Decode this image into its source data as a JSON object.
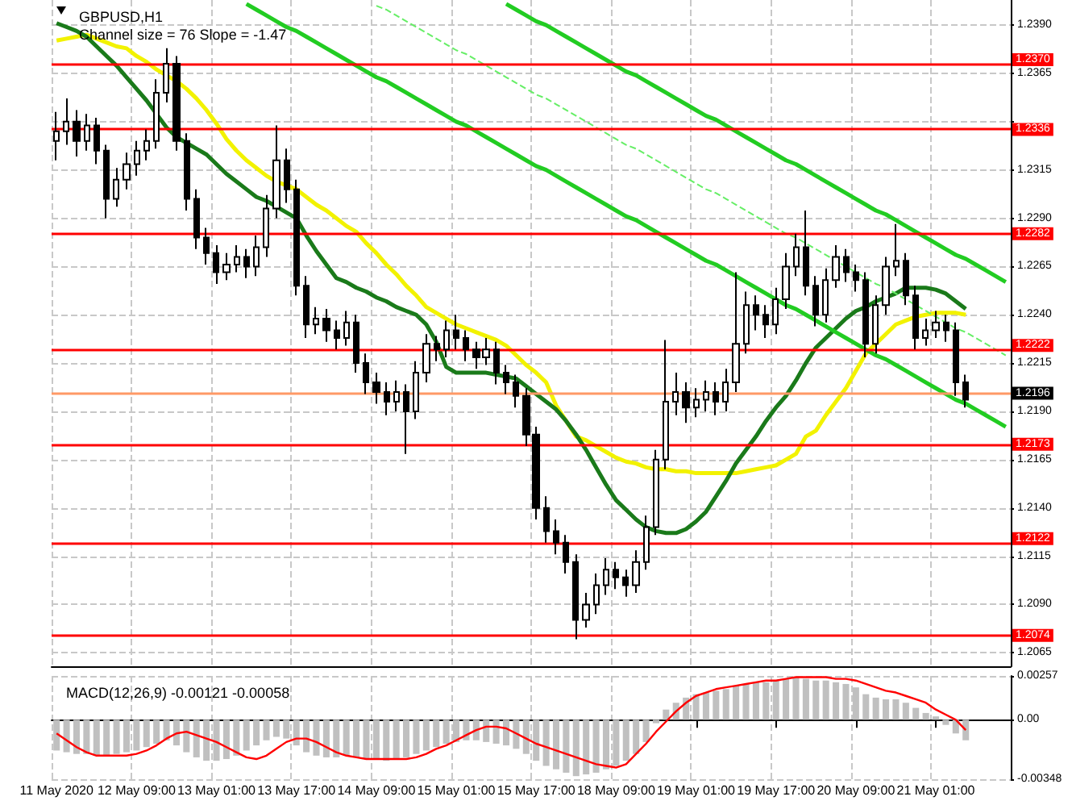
{
  "chart_data": [
    {
      "type": "candlestick",
      "title": "GBPUSD,H1",
      "subtitle": "Channel size = 76 Slope = -1.47",
      "color": "#000000",
      "categories": [
        null,
        null,
        null,
        null,
        null,
        null,
        null,
        null,
        null,
        null,
        null,
        null,
        null,
        null,
        null,
        null,
        null,
        null,
        null,
        null,
        null,
        null,
        null,
        null,
        null,
        null,
        null,
        null,
        null,
        null,
        null,
        null,
        null,
        null,
        null,
        null,
        null,
        null,
        null,
        null,
        null,
        null,
        null,
        null,
        null,
        null,
        null,
        null,
        null,
        null,
        null,
        null,
        null,
        null,
        null,
        null,
        null,
        null,
        null,
        null,
        null,
        null,
        null,
        null,
        null,
        null,
        null,
        null,
        null,
        null,
        null,
        null,
        null,
        null,
        null,
        null,
        null,
        null,
        null,
        null,
        null,
        null,
        null,
        null,
        null,
        null,
        null,
        null,
        null,
        null,
        null,
        null,
        null,
        null,
        null,
        null
      ],
      "ohlc": [
        [
          1.233,
          1.2345,
          1.232,
          1.2335
        ],
        [
          1.2335,
          1.2352,
          1.2328,
          1.234
        ],
        [
          1.234,
          1.2346,
          1.2322,
          1.233
        ],
        [
          1.233,
          1.2344,
          1.2325,
          1.2338
        ],
        [
          1.2338,
          1.2342,
          1.2318,
          1.2325
        ],
        [
          1.2325,
          1.2328,
          1.229,
          1.23
        ],
        [
          1.23,
          1.2316,
          1.2296,
          1.231
        ],
        [
          1.231,
          1.2324,
          1.2305,
          1.2318
        ],
        [
          1.2318,
          1.233,
          1.2312,
          1.2325
        ],
        [
          1.2325,
          1.2336,
          1.232,
          1.233
        ],
        [
          1.233,
          1.2362,
          1.2326,
          1.2355
        ],
        [
          1.2355,
          1.2378,
          1.235,
          1.237
        ],
        [
          1.237,
          1.2374,
          1.2325,
          1.233
        ],
        [
          1.233,
          1.2334,
          1.2294,
          1.23
        ],
        [
          1.23,
          1.2305,
          1.2274,
          1.228
        ],
        [
          1.228,
          1.2285,
          1.2266,
          1.2272
        ],
        [
          1.2272,
          1.2276,
          1.2256,
          1.2262
        ],
        [
          1.2262,
          1.2272,
          1.2258,
          1.2266
        ],
        [
          1.2266,
          1.2276,
          1.2262,
          1.227
        ],
        [
          1.227,
          1.2274,
          1.2259,
          1.2265
        ],
        [
          1.2265,
          1.2281,
          1.226,
          1.2275
        ],
        [
          1.2275,
          1.2302,
          1.227,
          1.2295
        ],
        [
          1.2295,
          1.2338,
          1.229,
          1.232
        ],
        [
          1.232,
          1.2326,
          1.2298,
          1.2305
        ],
        [
          1.2305,
          1.231,
          1.225,
          1.2255
        ],
        [
          1.2255,
          1.226,
          1.2228,
          1.2235
        ],
        [
          1.2235,
          1.2244,
          1.223,
          1.2238
        ],
        [
          1.2238,
          1.2243,
          1.2226,
          1.2232
        ],
        [
          1.2232,
          1.2237,
          1.2222,
          1.2228
        ],
        [
          1.2228,
          1.2242,
          1.2224,
          1.2236
        ],
        [
          1.2236,
          1.224,
          1.221,
          1.2215
        ],
        [
          1.2215,
          1.222,
          1.2199,
          1.2205
        ],
        [
          1.2205,
          1.221,
          1.2194,
          1.22
        ],
        [
          1.22,
          1.2205,
          1.2188,
          1.2195
        ],
        [
          1.2195,
          1.2206,
          1.219,
          1.22
        ],
        [
          1.22,
          1.2204,
          1.2168,
          1.219
        ],
        [
          1.219,
          1.2216,
          1.2186,
          1.221
        ],
        [
          1.221,
          1.223,
          1.2205,
          1.2225
        ],
        [
          1.2225,
          1.2229,
          1.2216,
          1.2222
        ],
        [
          1.2222,
          1.2237,
          1.2218,
          1.2232
        ],
        [
          1.2232,
          1.224,
          1.2222,
          1.2228
        ],
        [
          1.2228,
          1.2232,
          1.2216,
          1.2222
        ],
        [
          1.2222,
          1.2226,
          1.2212,
          1.2218
        ],
        [
          1.2218,
          1.2228,
          1.2214,
          1.2222
        ],
        [
          1.2222,
          1.2226,
          1.2204,
          1.221
        ],
        [
          1.221,
          1.2214,
          1.2199,
          1.2205
        ],
        [
          1.2205,
          1.2209,
          1.2192,
          1.2198
        ],
        [
          1.2198,
          1.2202,
          1.2172,
          1.2178
        ],
        [
          1.2178,
          1.2182,
          1.2134,
          1.214
        ],
        [
          1.214,
          1.2146,
          1.2122,
          1.2128
        ],
        [
          1.2128,
          1.2134,
          1.2116,
          1.2122
        ],
        [
          1.2122,
          1.2126,
          1.2106,
          1.2112
        ],
        [
          1.2112,
          1.2116,
          1.2072,
          1.2082
        ],
        [
          1.2082,
          1.2096,
          1.2078,
          1.209
        ],
        [
          1.209,
          1.2106,
          1.2085,
          1.21
        ],
        [
          1.21,
          1.2114,
          1.2095,
          1.2108
        ],
        [
          1.2108,
          1.2112,
          1.2098,
          1.2104
        ],
        [
          1.2104,
          1.2108,
          1.2094,
          1.21
        ],
        [
          1.21,
          1.2118,
          1.2096,
          1.2112
        ],
        [
          1.2112,
          1.2136,
          1.2108,
          1.213
        ],
        [
          1.213,
          1.217,
          1.2126,
          1.2165
        ],
        [
          1.2165,
          1.2227,
          1.216,
          1.2195
        ],
        [
          1.2195,
          1.221,
          1.2188,
          1.22
        ],
        [
          1.22,
          1.2205,
          1.2184,
          1.2192
        ],
        [
          1.2192,
          1.2202,
          1.2187,
          1.2196
        ],
        [
          1.2196,
          1.2206,
          1.219,
          1.22
        ],
        [
          1.22,
          1.2205,
          1.2188,
          1.2195
        ],
        [
          1.2195,
          1.2212,
          1.219,
          1.2205
        ],
        [
          1.2205,
          1.2262,
          1.22,
          1.2225
        ],
        [
          1.2225,
          1.2252,
          1.222,
          1.2245
        ],
        [
          1.2245,
          1.225,
          1.2232,
          1.224
        ],
        [
          1.224,
          1.2245,
          1.2228,
          1.2235
        ],
        [
          1.2235,
          1.2254,
          1.223,
          1.2248
        ],
        [
          1.2248,
          1.2272,
          1.2243,
          1.2265
        ],
        [
          1.2265,
          1.2282,
          1.226,
          1.2275
        ],
        [
          1.2275,
          1.2294,
          1.225,
          1.2255
        ],
        [
          1.2255,
          1.226,
          1.2234,
          1.224
        ],
        [
          1.224,
          1.2264,
          1.2236,
          1.2258
        ],
        [
          1.2258,
          1.2276,
          1.2254,
          1.227
        ],
        [
          1.227,
          1.2274,
          1.2257,
          1.2262
        ],
        [
          1.2262,
          1.2266,
          1.2252,
          1.2258
        ],
        [
          1.2258,
          1.2262,
          1.2218,
          1.2225
        ],
        [
          1.2225,
          1.225,
          1.222,
          1.2245
        ],
        [
          1.2245,
          1.227,
          1.224,
          1.2265
        ],
        [
          1.2265,
          1.2287,
          1.226,
          1.2268
        ],
        [
          1.2268,
          1.2272,
          1.2245,
          1.225
        ],
        [
          1.225,
          1.2255,
          1.2222,
          1.2228
        ],
        [
          1.2228,
          1.2238,
          1.2224,
          1.2232
        ],
        [
          1.2232,
          1.2242,
          1.2228,
          1.2236
        ],
        [
          1.2236,
          1.224,
          1.2226,
          1.2232
        ],
        [
          1.2232,
          1.2236,
          1.2198,
          1.2205
        ],
        [
          1.2205,
          1.2209,
          1.2192,
          1.2196
        ],
        null,
        null,
        null,
        null
      ],
      "series": [
        {
          "type": "line",
          "color": "#f2f200",
          "values": [
            1.2382,
            1.2383,
            1.2384,
            1.2385,
            1.2383,
            1.2381,
            1.2379,
            1.2378,
            1.2374,
            1.2371,
            1.2367,
            1.2364,
            1.2361,
            1.2357,
            1.2352,
            1.2346,
            1.2339,
            1.2331,
            1.2325,
            1.232,
            1.2316,
            1.2312,
            1.2309,
            1.2307,
            1.2305,
            1.2301,
            1.2297,
            1.2294,
            1.229,
            1.2286,
            1.2283,
            1.2277,
            1.2272,
            1.2266,
            1.2261,
            1.2255,
            1.225,
            1.2244,
            1.2241,
            1.2238,
            1.2235,
            1.2233,
            1.2231,
            1.2229,
            1.2227,
            1.2224,
            1.2219,
            1.2214,
            1.221,
            1.2205,
            1.2193,
            1.2185,
            1.2177,
            1.2175,
            1.2172,
            1.2169,
            1.2166,
            1.2164,
            1.2163,
            1.2161,
            1.216,
            1.216,
            1.2159,
            1.2159,
            1.2158,
            1.2158,
            1.2158,
            1.2158,
            1.2158,
            1.2159,
            1.216,
            1.2161,
            1.2162,
            1.2165,
            1.2168,
            1.2177,
            1.218,
            1.2188,
            1.2195,
            1.2202,
            1.2211,
            1.222,
            1.2225,
            1.223,
            1.2235,
            1.2237,
            1.2239,
            1.224,
            1.2241,
            1.2241,
            1.2241,
            1.224,
            null,
            null,
            null,
            null
          ]
        },
        {
          "type": "line",
          "color": "#1a7a1a",
          "values": [
            1.2391,
            1.2389,
            1.2387,
            1.2384,
            1.2379,
            1.2374,
            1.2369,
            1.2363,
            1.2357,
            1.2351,
            1.2344,
            1.2337,
            1.2332,
            1.2329,
            1.2326,
            1.2323,
            1.2318,
            1.2313,
            1.2309,
            1.2305,
            1.2301,
            1.2299,
            1.2296,
            1.2293,
            1.229,
            1.2281,
            1.2273,
            1.2266,
            1.2259,
            1.2257,
            1.2254,
            1.2252,
            1.2249,
            1.2247,
            1.2244,
            1.2242,
            1.224,
            1.2235,
            1.2226,
            1.2213,
            1.221,
            1.221,
            1.221,
            1.221,
            1.2209,
            1.2208,
            1.2207,
            1.2203,
            1.2199,
            1.2195,
            1.2191,
            1.2185,
            1.2178,
            1.217,
            1.2161,
            1.2152,
            1.2144,
            1.2139,
            1.2134,
            1.213,
            1.2128,
            1.2127,
            1.2127,
            1.2129,
            1.2133,
            1.2138,
            1.2146,
            1.2154,
            1.2163,
            1.217,
            1.2177,
            1.2185,
            1.2192,
            1.2198,
            1.2206,
            1.2215,
            1.2223,
            1.2228,
            1.2233,
            1.2238,
            1.2242,
            1.2244,
            1.2247,
            1.2249,
            1.2251,
            1.2254,
            1.2254,
            1.2254,
            1.2253,
            1.2251,
            1.2247,
            1.2243,
            null,
            null,
            null,
            null
          ]
        },
        {
          "type": "line",
          "color": "#22cc22",
          "values": [
            null,
            null,
            null,
            null,
            null,
            null,
            null,
            null,
            null,
            null,
            null,
            null,
            null,
            null,
            null,
            null,
            null,
            null,
            null,
            null,
            null,
            null,
            null,
            null,
            null,
            null,
            null,
            null,
            null,
            null,
            null,
            null,
            null,
            null,
            null,
            null,
            null,
            null,
            null,
            null,
            null,
            null,
            null,
            null,
            null,
            1.2401,
            1.2398,
            1.2395,
            1.2392,
            1.239,
            1.2387,
            1.2384,
            1.2381,
            1.2378,
            1.2375,
            1.2372,
            1.2369,
            1.2366,
            1.2364,
            1.2361,
            1.2358,
            1.2355,
            1.2352,
            1.2349,
            1.2346,
            1.2343,
            1.2341,
            1.2338,
            1.2335,
            1.2332,
            1.2329,
            1.2326,
            1.2323,
            1.232,
            1.2318,
            1.2315,
            1.2312,
            1.2309,
            1.2306,
            1.2303,
            1.23,
            1.2297,
            1.2294,
            1.2292,
            1.2289,
            1.2286,
            1.2283,
            1.228,
            1.2277,
            1.2274,
            1.2271,
            1.2269,
            1.2266,
            1.2263,
            1.226,
            1.2257
          ]
        },
        {
          "type": "line",
          "color": "#66ee66",
          "line_style": "dashed",
          "values": [
            null,
            null,
            null,
            null,
            null,
            null,
            null,
            null,
            null,
            null,
            null,
            null,
            null,
            null,
            null,
            null,
            null,
            null,
            null,
            null,
            null,
            null,
            null,
            null,
            null,
            null,
            null,
            null,
            null,
            null,
            null,
            null,
            1.24,
            1.2398,
            1.2395,
            1.2392,
            1.2389,
            1.2386,
            1.2383,
            1.238,
            1.2377,
            1.2375,
            1.2372,
            1.2369,
            1.2366,
            1.2363,
            1.236,
            1.2357,
            1.2354,
            1.2352,
            1.2349,
            1.2346,
            1.2343,
            1.234,
            1.2337,
            1.2334,
            1.2331,
            1.2328,
            1.2326,
            1.2323,
            1.232,
            1.2317,
            1.2314,
            1.2311,
            1.2308,
            1.2305,
            1.2303,
            1.23,
            1.2297,
            1.2294,
            1.2291,
            1.2288,
            1.2285,
            1.2282,
            1.228,
            1.2277,
            1.2274,
            1.2271,
            1.2268,
            1.2265,
            1.2262,
            1.2259,
            1.2256,
            1.2254,
            1.2251,
            1.2248,
            1.2245,
            1.2242,
            1.2239,
            1.2236,
            1.2233,
            1.2231,
            1.2228,
            1.2225,
            1.2222,
            1.2219
          ]
        },
        {
          "type": "line",
          "color": "#22cc22",
          "values": [
            null,
            null,
            null,
            null,
            null,
            null,
            null,
            null,
            null,
            null,
            null,
            null,
            null,
            null,
            null,
            null,
            null,
            null,
            null,
            1.2401,
            1.2398,
            1.2395,
            1.2392,
            1.2389,
            1.2387,
            1.2384,
            1.2381,
            1.2378,
            1.2375,
            1.2372,
            1.2369,
            1.2366,
            1.2363,
            1.2361,
            1.2358,
            1.2355,
            1.2352,
            1.2349,
            1.2346,
            1.2343,
            1.234,
            1.2338,
            1.2335,
            1.2332,
            1.2329,
            1.2326,
            1.2323,
            1.232,
            1.2317,
            1.2315,
            1.2312,
            1.2309,
            1.2306,
            1.2303,
            1.23,
            1.2297,
            1.2294,
            1.2291,
            1.2289,
            1.2286,
            1.2283,
            1.228,
            1.2277,
            1.2274,
            1.2271,
            1.2268,
            1.2266,
            1.2263,
            1.226,
            1.2257,
            1.2254,
            1.2251,
            1.2248,
            1.2245,
            1.2243,
            1.224,
            1.2237,
            1.2234,
            1.2231,
            1.2228,
            1.2225,
            1.2222,
            1.2219,
            1.2217,
            1.2214,
            1.2211,
            1.2208,
            1.2205,
            1.2202,
            1.2199,
            1.2196,
            1.2194,
            1.2191,
            1.2188,
            1.2185,
            1.2182
          ]
        }
      ],
      "ref_lines": [
        {
          "axis": "y",
          "value": 1.237,
          "label": "1.2370",
          "color": "#ff0000"
        },
        {
          "axis": "y",
          "value": 1.2336,
          "label": "1.2336",
          "color": "#ff0000"
        },
        {
          "axis": "y",
          "value": 1.2282,
          "label": "1.2282",
          "color": "#ff0000"
        },
        {
          "axis": "y",
          "value": 1.2222,
          "label": "1.2222",
          "color": "#ff0000"
        },
        {
          "axis": "y",
          "value": 1.2199,
          "label": null,
          "color": "#ff9966"
        },
        {
          "axis": "y",
          "value": 1.2173,
          "label": "1.2173",
          "color": "#ff0000"
        },
        {
          "axis": "y",
          "value": 1.2122,
          "label": "1.2122",
          "color": "#ff0000"
        },
        {
          "axis": "y",
          "value": 1.2074,
          "label": "1.2074",
          "color": "#ff0000"
        }
      ],
      "annotations": [
        "1.2196"
      ],
      "ylim": [
        1.2058,
        1.2403
      ],
      "yticks": [
        {
          "value": 1.2065,
          "label": "1.2065"
        },
        {
          "value": 1.209,
          "label": "1.2090"
        },
        {
          "value": 1.2115,
          "label": "1.2115"
        },
        {
          "value": 1.214,
          "label": "1.2140"
        },
        {
          "value": 1.2165,
          "label": "1.2165"
        },
        {
          "value": 1.219,
          "label": "1.2190"
        },
        {
          "value": 1.2215,
          "label": "1.2215"
        },
        {
          "value": 1.224,
          "label": "1.2240"
        },
        {
          "value": 1.2265,
          "label": "1.2265"
        },
        {
          "value": 1.229,
          "label": "1.2290"
        },
        {
          "value": 1.2315,
          "label": "1.2315"
        },
        {
          "value": 1.234,
          "label": null
        },
        {
          "value": 1.2365,
          "label": "1.2365"
        },
        {
          "value": 1.239,
          "label": "1.2390"
        }
      ],
      "grid": true,
      "marker": "none",
      "tick_labels": "y"
    },
    {
      "type": "bar",
      "title": "MACD(12,26,9) -0.00121 -0.00058",
      "categories": [
        "11 May 2020",
        null,
        null,
        null,
        null,
        null,
        null,
        null,
        "12 May 09:00",
        null,
        null,
        null,
        null,
        null,
        null,
        null,
        "13 May 01:00",
        null,
        null,
        null,
        null,
        null,
        null,
        null,
        "13 May 17:00",
        null,
        null,
        null,
        null,
        null,
        null,
        null,
        "14 May 09:00",
        null,
        null,
        null,
        null,
        null,
        null,
        null,
        "15 May 01:00",
        null,
        null,
        null,
        null,
        null,
        null,
        null,
        "15 May 17:00",
        null,
        null,
        null,
        null,
        null,
        null,
        null,
        "18 May 09:00",
        null,
        null,
        null,
        null,
        null,
        null,
        null,
        "19 May 01:00",
        null,
        null,
        null,
        null,
        null,
        null,
        null,
        "19 May 17:00",
        null,
        null,
        null,
        null,
        null,
        null,
        null,
        "20 May 09:00",
        null,
        null,
        null,
        null,
        null,
        null,
        null,
        "21 May 01:00",
        null,
        null,
        null,
        null,
        null,
        null,
        null
      ],
      "series": [
        {
          "type": "bar",
          "color": "#c0c0c0",
          "values": [
            -0.0018,
            -0.0019,
            -0.002,
            -0.002,
            -0.0021,
            -0.0021,
            -0.002,
            -0.0019,
            -0.0018,
            -0.0016,
            -0.0014,
            -0.0012,
            -0.0015,
            -0.0019,
            -0.0022,
            -0.0024,
            -0.0024,
            -0.0023,
            -0.0021,
            -0.0018,
            -0.0015,
            -0.0012,
            -0.001,
            -0.0011,
            -0.0015,
            -0.0019,
            -0.0021,
            -0.0022,
            -0.0022,
            -0.0021,
            -0.0022,
            -0.0023,
            -0.0023,
            -0.0024,
            -0.0023,
            -0.0022,
            -0.002,
            -0.0018,
            -0.0016,
            -0.0014,
            -0.0013,
            -0.0012,
            -0.0012,
            -0.0013,
            -0.0014,
            -0.0015,
            -0.0017,
            -0.002,
            -0.0024,
            -0.0027,
            -0.0029,
            -0.0031,
            -0.0033,
            -0.0032,
            -0.0031,
            -0.0029,
            -0.0027,
            -0.0024,
            -0.002,
            -0.0013,
            -0.0002,
            0.0006,
            0.001,
            0.0013,
            0.0015,
            0.0016,
            0.0017,
            0.0018,
            0.002,
            0.0021,
            0.0022,
            0.0022,
            0.0023,
            0.0024,
            0.0025,
            0.0024,
            0.0023,
            0.0023,
            0.0022,
            0.0021,
            0.0019,
            0.0015,
            0.0013,
            0.0012,
            0.0012,
            0.001,
            0.0007,
            0.0004,
            0.0002,
            -0.0003,
            -0.0008,
            -0.0012,
            null,
            null,
            null,
            null
          ]
        },
        {
          "type": "line",
          "color": "#ff0000",
          "values": [
            -0.0008,
            -0.0012,
            -0.0016,
            -0.0019,
            -0.0021,
            -0.0021,
            -0.0021,
            -0.0021,
            -0.002,
            -0.0018,
            -0.0015,
            -0.0011,
            -0.0008,
            -0.0007,
            -0.0009,
            -0.0011,
            -0.0013,
            -0.0016,
            -0.0019,
            -0.0022,
            -0.0023,
            -0.0021,
            -0.0017,
            -0.0013,
            -0.0011,
            -0.0011,
            -0.0013,
            -0.0016,
            -0.0019,
            -0.0021,
            -0.0022,
            -0.0023,
            -0.0023,
            -0.0023,
            -0.0023,
            -0.0023,
            -0.0022,
            -0.002,
            -0.0017,
            -0.0015,
            -0.0012,
            -0.0009,
            -0.0006,
            -0.0004,
            -0.0004,
            -0.0005,
            -0.0008,
            -0.0011,
            -0.0014,
            -0.0016,
            -0.0018,
            -0.002,
            -0.0022,
            -0.0024,
            -0.0026,
            -0.0027,
            -0.0028,
            -0.0026,
            -0.002,
            -0.0014,
            -0.0007,
            -0.0001,
            0.0005,
            0.001,
            0.0014,
            0.0016,
            0.0018,
            0.0019,
            0.002,
            0.0021,
            0.0022,
            0.0023,
            0.0023,
            0.0024,
            0.0025,
            0.0025,
            0.0025,
            0.0025,
            0.0024,
            0.0024,
            0.0023,
            0.0021,
            0.0019,
            0.0017,
            0.0016,
            0.0014,
            0.0012,
            0.001,
            0.0006,
            0.0003,
            0.0,
            -0.0006,
            null,
            null,
            null,
            null
          ]
        }
      ],
      "ylim": [
        -0.00348,
        0.00257
      ],
      "yticks": [
        -0.00348,
        {
          "value": 0,
          "label": "0.00"
        },
        0.00257
      ],
      "grid": true,
      "marker": "none"
    }
  ]
}
